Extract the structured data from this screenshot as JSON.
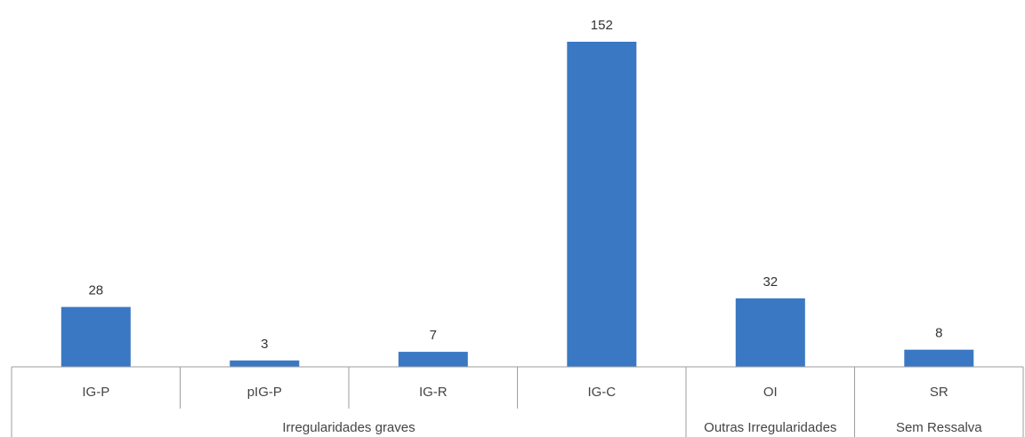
{
  "chart_data": {
    "type": "bar",
    "title": "",
    "xlabel": "",
    "ylabel": "",
    "categories": [
      "IG-P",
      "pIG-P",
      "IG-R",
      "IG-C",
      "OI",
      "SR"
    ],
    "values": [
      28,
      3,
      7,
      152,
      32,
      8
    ],
    "groups": [
      {
        "label": "Irregularidades graves",
        "categories": [
          "IG-P",
          "pIG-P",
          "IG-R",
          "IG-C"
        ]
      },
      {
        "label": "Outras Irregularidades",
        "categories": [
          "OI"
        ]
      },
      {
        "label": "Sem Ressalva",
        "categories": [
          "SR"
        ]
      }
    ],
    "ylim": [
      0,
      152
    ],
    "grid": false,
    "legend": "none",
    "bar_color": "#3a78c4",
    "axis_color": "#9e9e9e"
  }
}
